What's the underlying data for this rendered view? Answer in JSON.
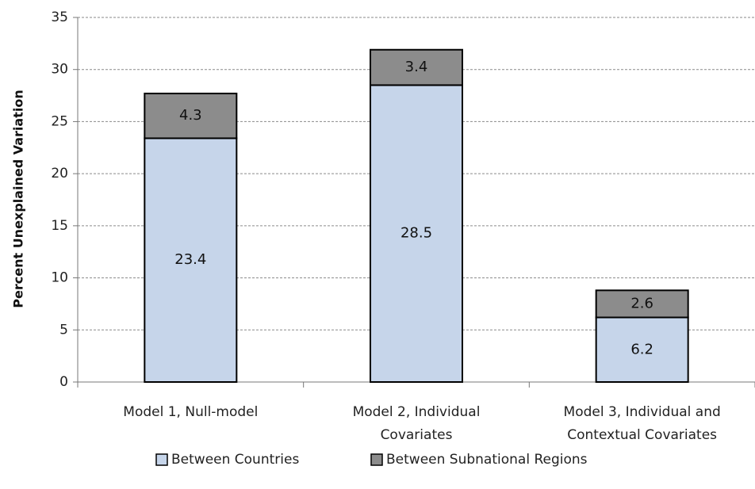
{
  "chart_data": {
    "type": "bar",
    "stacked": true,
    "categories": [
      [
        "Model 1, Null-model"
      ],
      [
        "Model 2, Individual",
        "Covariates"
      ],
      [
        "Model 3, Individual and",
        "Contextual Covariates"
      ]
    ],
    "series": [
      {
        "name": "Between Countries",
        "values": [
          23.4,
          28.5,
          6.2
        ],
        "color": "#c6d5ea"
      },
      {
        "name": "Between Subnational Regions",
        "values": [
          4.3,
          3.4,
          2.6
        ],
        "color": "#8c8c8c"
      }
    ],
    "ylabel": "Percent Unexplained Variation",
    "xlabel": "",
    "ylim": [
      0,
      35
    ],
    "yticks": [
      0,
      5,
      10,
      15,
      20,
      25,
      30,
      35
    ],
    "grid": true,
    "legend_position": "bottom"
  }
}
